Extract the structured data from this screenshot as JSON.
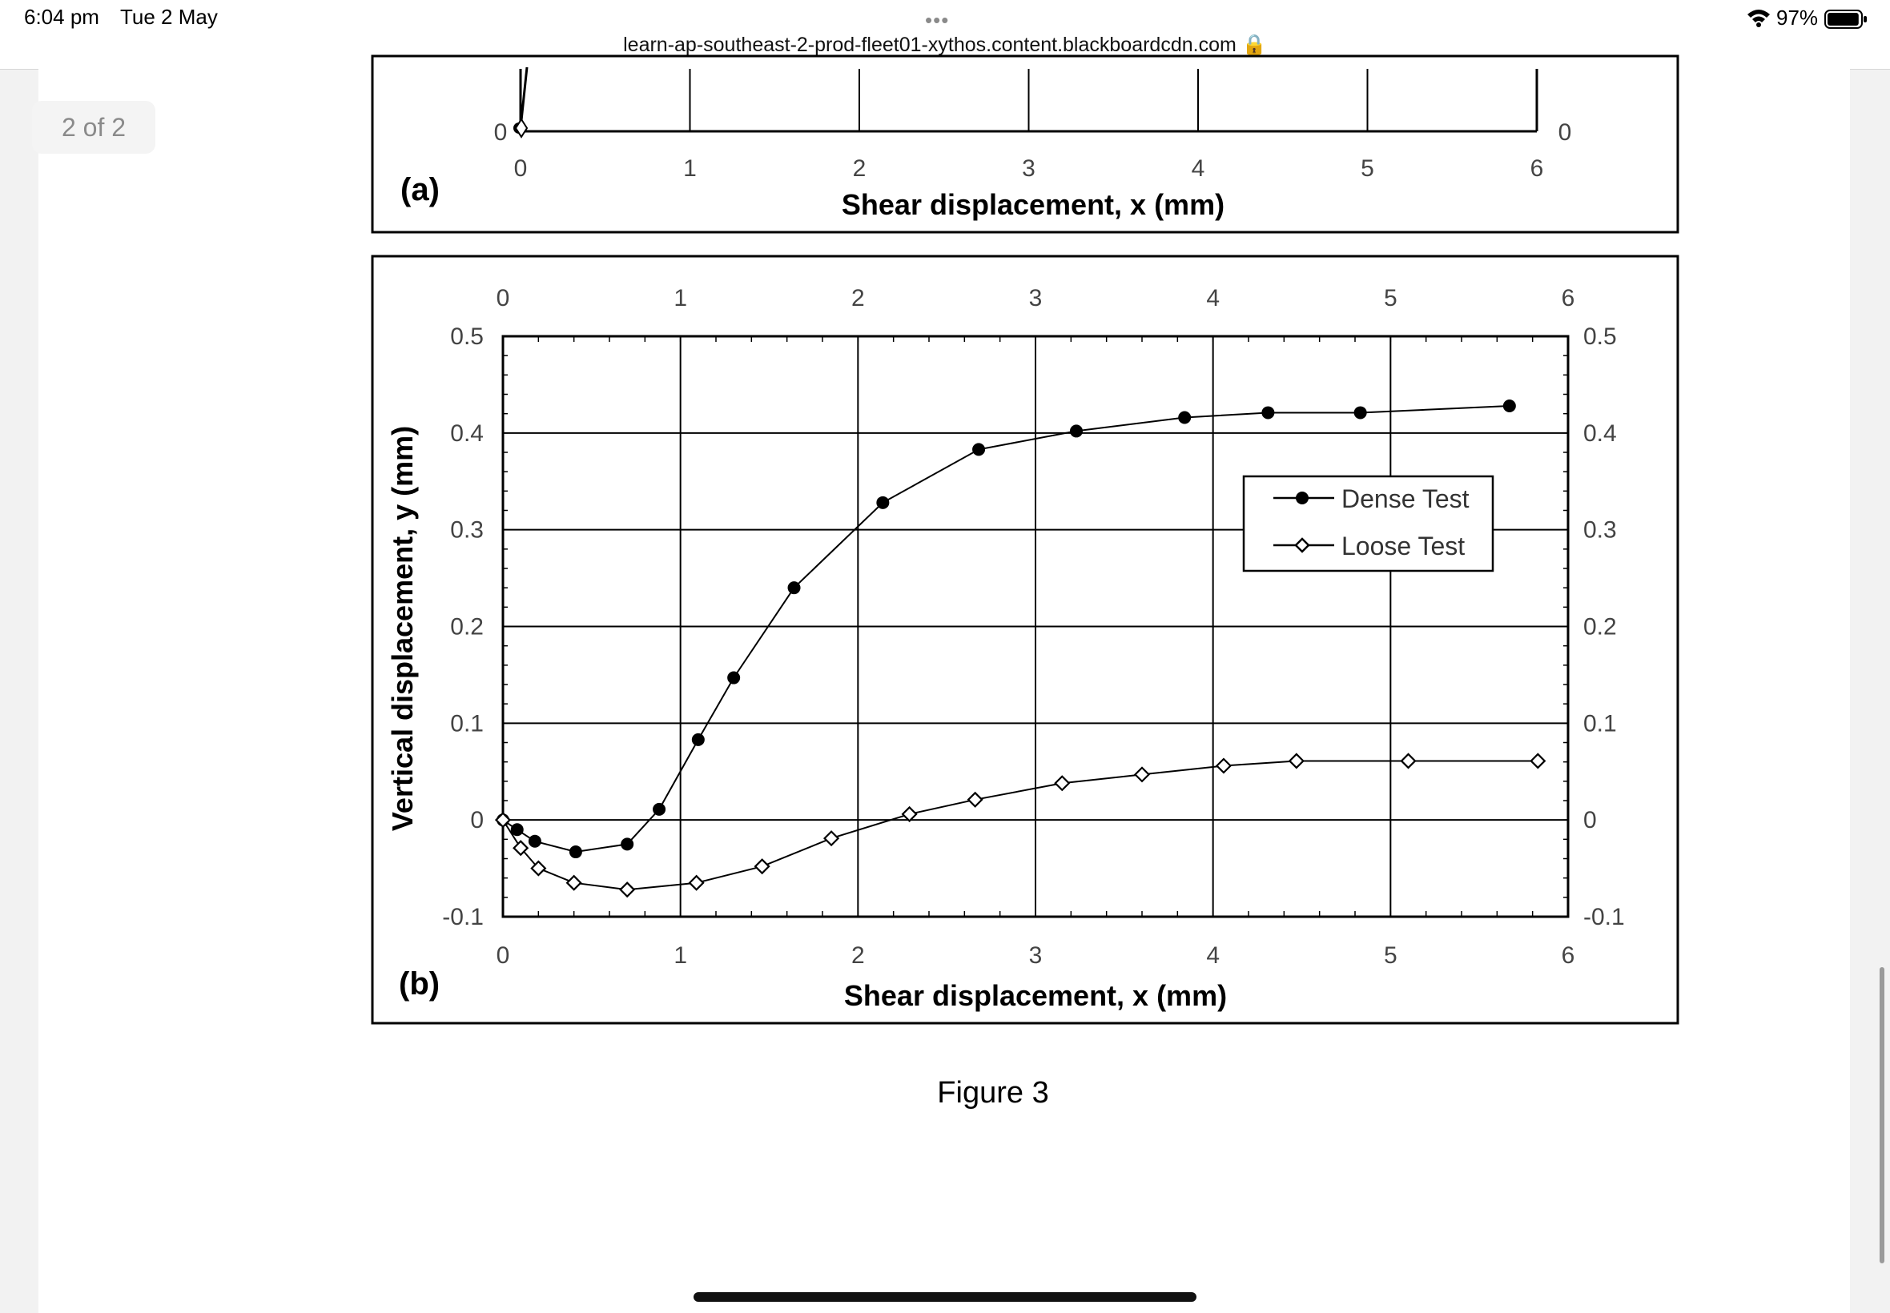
{
  "status_bar": {
    "time": "6:04 pm",
    "date": "Tue 2 May",
    "menu_dots": "•••",
    "url": "learn-ap-southeast-2-prod-fleet01-xythos.content.blackboardcdn.com 🔒",
    "battery_pct": "97%",
    "battery_level": 0.97
  },
  "viewer": {
    "page_indicator": "2 of 2"
  },
  "figure": {
    "caption": "Figure 3",
    "panel_a": {
      "label": "(a)",
      "xlabel": "Shear displacement, x (mm)",
      "x_ticks": [
        "0",
        "1",
        "2",
        "3",
        "4",
        "5",
        "6"
      ],
      "y_tick_left": "0",
      "y_tick_right": "0"
    }
  },
  "chart_data": {
    "type": "line",
    "panel_label": "(b)",
    "xlabel": "Shear displacement, x (mm)",
    "ylabel": "Vertical displacement, y (mm)",
    "xlim": [
      0,
      6
    ],
    "ylim": [
      -0.1,
      0.5
    ],
    "x_ticks": [
      "0",
      "1",
      "2",
      "3",
      "4",
      "5",
      "6"
    ],
    "y_ticks": [
      "-0.1",
      "0",
      "0.1",
      "0.2",
      "0.3",
      "0.4",
      "0.5"
    ],
    "grid": true,
    "legend_position": "right",
    "series": [
      {
        "name": "Dense Test",
        "marker": "filled-circle",
        "x": [
          0,
          0.08,
          0.18,
          0.41,
          0.7,
          0.88,
          1.1,
          1.3,
          1.64,
          2.14,
          2.68,
          3.23,
          3.84,
          4.31,
          4.83,
          5.67
        ],
        "y": [
          0.0,
          -0.01,
          -0.022,
          -0.033,
          -0.025,
          0.011,
          0.083,
          0.147,
          0.24,
          0.328,
          0.383,
          0.402,
          0.416,
          0.421,
          0.421,
          0.428
        ]
      },
      {
        "name": "Loose Test",
        "marker": "open-diamond",
        "x": [
          0,
          0.1,
          0.2,
          0.4,
          0.7,
          1.09,
          1.46,
          1.85,
          2.29,
          2.66,
          3.15,
          3.6,
          4.06,
          4.47,
          5.1,
          5.83
        ],
        "y": [
          0.0,
          -0.029,
          -0.05,
          -0.065,
          -0.072,
          -0.065,
          -0.048,
          -0.019,
          0.006,
          0.021,
          0.038,
          0.047,
          0.056,
          0.061,
          0.061,
          0.061
        ]
      }
    ]
  }
}
